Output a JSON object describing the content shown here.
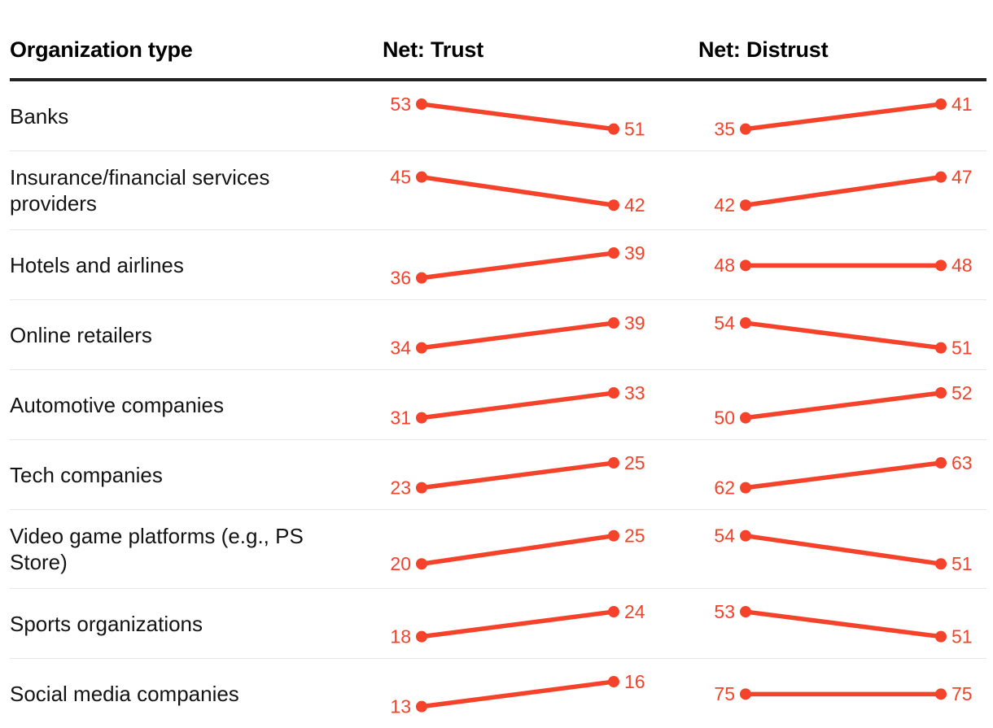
{
  "colors": {
    "accent": "#f4422b",
    "header_rule": "#232323",
    "row_separator": "#e7e7e7",
    "header_text": "#000000",
    "label_text": "#141414"
  },
  "chart_data": {
    "type": "line",
    "subtype": "slope-table",
    "title": "",
    "legend": "none",
    "grid": false,
    "header": {
      "organization": "Organization type",
      "trust": "Net: Trust",
      "distrust": "Net: Distrust"
    },
    "rows": [
      {
        "label": "Banks",
        "trust": [
          53,
          51
        ],
        "distrust": [
          35,
          41
        ]
      },
      {
        "label": "Insurance/financial services providers",
        "trust": [
          45,
          42
        ],
        "distrust": [
          42,
          47
        ]
      },
      {
        "label": "Hotels and airlines",
        "trust": [
          36,
          39
        ],
        "distrust": [
          48,
          48
        ]
      },
      {
        "label": "Online retailers",
        "trust": [
          34,
          39
        ],
        "distrust": [
          54,
          51
        ]
      },
      {
        "label": "Automotive companies",
        "trust": [
          31,
          33
        ],
        "distrust": [
          50,
          52
        ]
      },
      {
        "label": "Tech companies",
        "trust": [
          23,
          25
        ],
        "distrust": [
          62,
          63
        ]
      },
      {
        "label": "Video game platforms (e.g., PS Store)",
        "trust": [
          20,
          25
        ],
        "distrust": [
          54,
          51
        ]
      },
      {
        "label": "Sports organizations",
        "trust": [
          18,
          24
        ],
        "distrust": [
          53,
          51
        ]
      },
      {
        "label": "Social media companies",
        "trust": [
          13,
          16
        ],
        "distrust": [
          75,
          75
        ]
      }
    ]
  }
}
